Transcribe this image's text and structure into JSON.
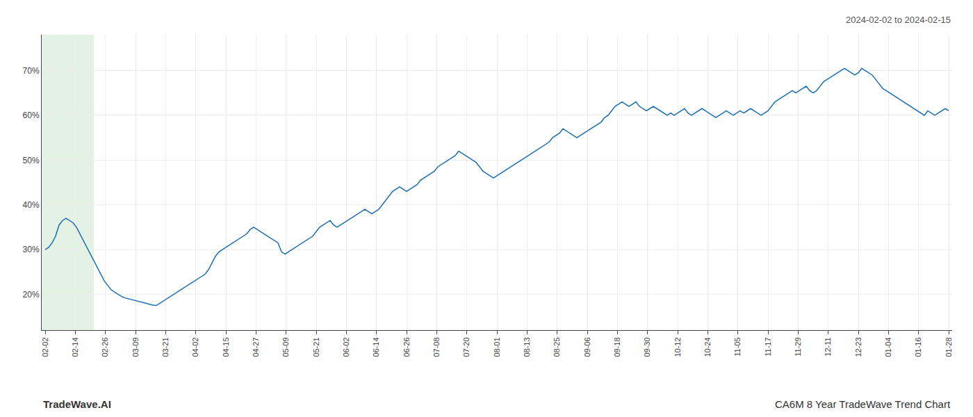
{
  "chart_data": {
    "type": "line",
    "title": "CA6M 8 Year TradeWave Trend Chart",
    "subtitle": "2024-02-02 to 2024-02-15",
    "annotations": [
      "TradeWave.AI"
    ],
    "color": "#1a6db5",
    "grid": true,
    "highlight": {
      "x": [
        -1,
        14
      ],
      "color": "#d8edd8"
    },
    "xlim": [
      -1,
      261
    ],
    "xticks": [
      {
        "value": 0,
        "label": "02-02"
      },
      {
        "value": 8.666666666666666,
        "label": "02-14"
      },
      {
        "value": 17.333333333333332,
        "label": "02-26"
      },
      {
        "value": 26,
        "label": "03-09"
      },
      {
        "value": 34.666666666666664,
        "label": "03-21"
      },
      {
        "value": 43.333333333333336,
        "label": "04-02"
      },
      {
        "value": 52,
        "label": "04-15"
      },
      {
        "value": 60.666666666666664,
        "label": "04-27"
      },
      {
        "value": 69.33333333333333,
        "label": "05-09"
      },
      {
        "value": 78,
        "label": "05-21"
      },
      {
        "value": 86.66666666666667,
        "label": "06-02"
      },
      {
        "value": 95.33333333333333,
        "label": "06-14"
      },
      {
        "value": 104,
        "label": "06-26"
      },
      {
        "value": 112.66666666666667,
        "label": "07-08"
      },
      {
        "value": 121.33333333333333,
        "label": "07-20"
      },
      {
        "value": 130,
        "label": "08-01"
      },
      {
        "value": 138.66666666666666,
        "label": "08-13"
      },
      {
        "value": 147.33333333333334,
        "label": "08-25"
      },
      {
        "value": 156,
        "label": "09-06"
      },
      {
        "value": 164.66666666666666,
        "label": "09-18"
      },
      {
        "value": 173.33333333333334,
        "label": "09-30"
      },
      {
        "value": 182,
        "label": "10-12"
      },
      {
        "value": 190.66666666666666,
        "label": "10-24"
      },
      {
        "value": 199.33333333333334,
        "label": "11-05"
      },
      {
        "value": 208,
        "label": "11-17"
      },
      {
        "value": 216.66666666666666,
        "label": "11-29"
      },
      {
        "value": 225.33333333333334,
        "label": "12-11"
      },
      {
        "value": 234,
        "label": "12-23"
      },
      {
        "value": 242.66666666666666,
        "label": "01-04"
      },
      {
        "value": 251.33333333333334,
        "label": "01-16"
      },
      {
        "value": 260,
        "label": "01-28"
      }
    ],
    "ylim": [
      12,
      78
    ],
    "yticks": [
      {
        "value": 20,
        "label": "20%"
      },
      {
        "value": 30,
        "label": "30%"
      },
      {
        "value": 40,
        "label": "40%"
      },
      {
        "value": 50,
        "label": "50%"
      },
      {
        "value": 60,
        "label": "60%"
      },
      {
        "value": 70,
        "label": "70%"
      }
    ],
    "x": [
      0,
      1,
      2,
      3,
      4,
      5,
      6,
      7,
      8,
      9,
      10,
      11,
      12,
      13,
      14,
      15,
      16,
      17,
      18,
      19,
      20,
      21,
      22,
      23,
      24,
      25,
      26,
      27,
      28,
      29,
      30,
      31,
      32,
      33,
      34,
      35,
      36,
      37,
      38,
      39,
      40,
      41,
      42,
      43,
      44,
      45,
      46,
      47,
      48,
      49,
      50,
      51,
      52,
      53,
      54,
      55,
      56,
      57,
      58,
      59,
      60,
      61,
      62,
      63,
      64,
      65,
      66,
      67,
      68,
      69,
      70,
      71,
      72,
      73,
      74,
      75,
      76,
      77,
      78,
      79,
      80,
      81,
      82,
      83,
      84,
      85,
      86,
      87,
      88,
      89,
      90,
      91,
      92,
      93,
      94,
      95,
      96,
      97,
      98,
      99,
      100,
      101,
      102,
      103,
      104,
      105,
      106,
      107,
      108,
      109,
      110,
      111,
      112,
      113,
      114,
      115,
      116,
      117,
      118,
      119,
      120,
      121,
      122,
      123,
      124,
      125,
      126,
      127,
      128,
      129,
      130,
      131,
      132,
      133,
      134,
      135,
      136,
      137,
      138,
      139,
      140,
      141,
      142,
      143,
      144,
      145,
      146,
      147,
      148,
      149,
      150,
      151,
      152,
      153,
      154,
      155,
      156,
      157,
      158,
      159,
      160,
      161,
      162,
      163,
      164,
      165,
      166,
      167,
      168,
      169,
      170,
      171,
      172,
      173,
      174,
      175,
      176,
      177,
      178,
      179,
      180,
      181,
      182,
      183,
      184,
      185,
      186,
      187,
      188,
      189,
      190,
      191,
      192,
      193,
      194,
      195,
      196,
      197,
      198,
      199,
      200,
      201,
      202,
      203,
      204,
      205,
      206,
      207,
      208,
      209,
      210,
      211,
      212,
      213,
      214,
      215,
      216,
      217,
      218,
      219,
      220,
      221,
      222,
      223,
      224,
      225,
      226,
      227,
      228,
      229,
      230,
      231,
      232,
      233,
      234,
      235,
      236,
      237,
      238,
      239,
      240,
      241,
      242,
      243,
      244,
      245,
      246,
      247,
      248,
      249,
      250,
      251,
      252,
      253,
      254,
      255,
      256,
      257,
      258,
      259,
      260
    ],
    "values": [
      30.0,
      30.5,
      31.5,
      33.0,
      35.5,
      36.5,
      37.0,
      36.5,
      36.0,
      35.0,
      33.5,
      32.0,
      30.5,
      29.0,
      27.5,
      26.0,
      24.5,
      23.0,
      22.0,
      21.0,
      20.5,
      20.0,
      19.5,
      19.2,
      19.0,
      18.8,
      18.5,
      18.3,
      18.2,
      18.0,
      17.8,
      17.6,
      17.5,
      18.0,
      18.5,
      19.0,
      19.5,
      20.0,
      20.5,
      21.0,
      21.5,
      22.0,
      22.5,
      23.0,
      23.5,
      24.0,
      24.5,
      25.5,
      27.0,
      28.5,
      29.5,
      30.0,
      30.5,
      31.0,
      31.5,
      32.0,
      32.5,
      33.0,
      33.5,
      34.5,
      35.0,
      34.5,
      34.0,
      33.5,
      33.0,
      32.5,
      32.0,
      31.5,
      29.5,
      29.0,
      29.5,
      30.0,
      30.5,
      31.0,
      31.5,
      32.0,
      32.5,
      33.0,
      34.0,
      35.0,
      35.5,
      36.0,
      36.5,
      35.5,
      35.0,
      35.5,
      36.0,
      36.5,
      37.0,
      37.5,
      38.0,
      38.5,
      39.0,
      38.5,
      38.0,
      38.5,
      39.0,
      40.0,
      41.0,
      42.0,
      43.0,
      43.5,
      44.0,
      43.5,
      43.0,
      43.5,
      44.0,
      44.5,
      45.5,
      46.0,
      46.5,
      47.0,
      47.5,
      48.5,
      49.0,
      49.5,
      50.0,
      50.5,
      51.0,
      52.0,
      51.5,
      51.0,
      50.5,
      50.0,
      49.5,
      48.5,
      47.5,
      47.0,
      46.5,
      46.0,
      46.5,
      47.0,
      47.5,
      48.0,
      48.5,
      49.0,
      49.5,
      50.0,
      50.5,
      51.0,
      51.5,
      52.0,
      52.5,
      53.0,
      53.5,
      54.0,
      55.0,
      55.5,
      56.0,
      57.0,
      56.5,
      56.0,
      55.5,
      55.0,
      55.5,
      56.0,
      56.5,
      57.0,
      57.5,
      58.0,
      58.5,
      59.5,
      60.0,
      61.0,
      62.0,
      62.5,
      63.0,
      62.5,
      62.0,
      62.5,
      63.0,
      62.0,
      61.5,
      61.0,
      61.5,
      62.0,
      61.5,
      61.0,
      60.5,
      60.0,
      60.5,
      60.0,
      60.5,
      61.0,
      61.5,
      60.5,
      60.0,
      60.5,
      61.0,
      61.5,
      61.0,
      60.5,
      60.0,
      59.5,
      60.0,
      60.5,
      61.0,
      60.5,
      60.0,
      60.5,
      61.0,
      60.5,
      61.0,
      61.5,
      61.0,
      60.5,
      60.0,
      60.5,
      61.0,
      62.0,
      63.0,
      63.5,
      64.0,
      64.5,
      65.0,
      65.5,
      65.0,
      65.5,
      66.0,
      66.5,
      65.5,
      65.0,
      65.5,
      66.5,
      67.5,
      68.0,
      68.5,
      69.0,
      69.5,
      70.0,
      70.5,
      70.0,
      69.5,
      69.0,
      69.5,
      70.5,
      70.0,
      69.5,
      69.0,
      68.0,
      67.0,
      66.0,
      65.5,
      65.0,
      64.5,
      64.0,
      63.5,
      63.0,
      62.5,
      62.0,
      61.5,
      61.0,
      60.5,
      60.0,
      61.0,
      60.5,
      60.0,
      60.5,
      61.0,
      61.5,
      61.0
    ]
  }
}
